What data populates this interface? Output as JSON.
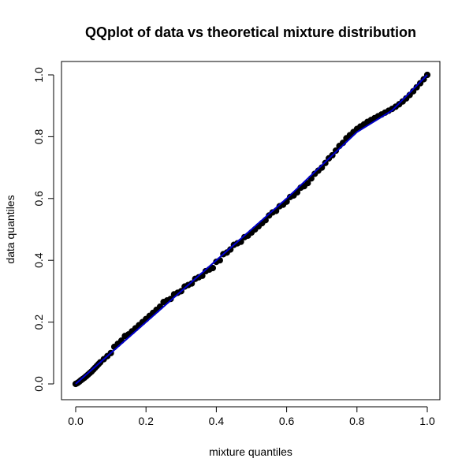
{
  "chart_data": {
    "type": "scatter",
    "title": "QQplot of data vs theoretical mixture distribution",
    "xlabel": "mixture quantiles",
    "ylabel": "data quantiles",
    "xlim": [
      0,
      1
    ],
    "ylim": [
      0,
      1
    ],
    "x_ticks": [
      "0.0",
      "0.2",
      "0.4",
      "0.6",
      "0.8",
      "1.0"
    ],
    "y_ticks": [
      "0.0",
      "0.2",
      "0.4",
      "0.6",
      "0.8",
      "1.0"
    ],
    "grid": false,
    "legend": "none",
    "point_color": "#000000",
    "line_color": "#0000cc",
    "reference_line": {
      "x": [
        0,
        0.6,
        0.8,
        0.9,
        1.0
      ],
      "y": [
        0,
        0.6,
        0.815,
        0.885,
        1.0
      ]
    },
    "series": [
      {
        "points": [
          [
            0.0,
            0.0
          ],
          [
            0.005,
            0.003
          ],
          [
            0.01,
            0.007
          ],
          [
            0.015,
            0.012
          ],
          [
            0.02,
            0.016
          ],
          [
            0.025,
            0.02
          ],
          [
            0.03,
            0.025
          ],
          [
            0.035,
            0.03
          ],
          [
            0.04,
            0.035
          ],
          [
            0.045,
            0.04
          ],
          [
            0.05,
            0.046
          ],
          [
            0.055,
            0.052
          ],
          [
            0.06,
            0.058
          ],
          [
            0.065,
            0.064
          ],
          [
            0.07,
            0.07
          ],
          [
            0.08,
            0.08
          ],
          [
            0.09,
            0.09
          ],
          [
            0.1,
            0.1
          ],
          [
            0.11,
            0.12
          ],
          [
            0.12,
            0.13
          ],
          [
            0.13,
            0.14
          ],
          [
            0.14,
            0.155
          ],
          [
            0.15,
            0.16
          ],
          [
            0.16,
            0.17
          ],
          [
            0.17,
            0.18
          ],
          [
            0.18,
            0.19
          ],
          [
            0.19,
            0.2
          ],
          [
            0.2,
            0.21
          ],
          [
            0.21,
            0.22
          ],
          [
            0.22,
            0.23
          ],
          [
            0.23,
            0.24
          ],
          [
            0.24,
            0.25
          ],
          [
            0.25,
            0.265
          ],
          [
            0.26,
            0.27
          ],
          [
            0.27,
            0.275
          ],
          [
            0.28,
            0.29
          ],
          [
            0.29,
            0.295
          ],
          [
            0.3,
            0.3
          ],
          [
            0.31,
            0.315
          ],
          [
            0.32,
            0.32
          ],
          [
            0.33,
            0.325
          ],
          [
            0.34,
            0.34
          ],
          [
            0.35,
            0.345
          ],
          [
            0.36,
            0.35
          ],
          [
            0.37,
            0.365
          ],
          [
            0.38,
            0.37
          ],
          [
            0.39,
            0.375
          ],
          [
            0.4,
            0.395
          ],
          [
            0.41,
            0.4
          ],
          [
            0.42,
            0.42
          ],
          [
            0.43,
            0.425
          ],
          [
            0.44,
            0.435
          ],
          [
            0.45,
            0.45
          ],
          [
            0.46,
            0.455
          ],
          [
            0.47,
            0.46
          ],
          [
            0.48,
            0.475
          ],
          [
            0.49,
            0.48
          ],
          [
            0.5,
            0.49
          ],
          [
            0.51,
            0.5
          ],
          [
            0.52,
            0.51
          ],
          [
            0.53,
            0.52
          ],
          [
            0.54,
            0.53
          ],
          [
            0.55,
            0.545
          ],
          [
            0.56,
            0.555
          ],
          [
            0.57,
            0.56
          ],
          [
            0.58,
            0.575
          ],
          [
            0.59,
            0.58
          ],
          [
            0.6,
            0.59
          ],
          [
            0.61,
            0.605
          ],
          [
            0.62,
            0.61
          ],
          [
            0.63,
            0.62
          ],
          [
            0.64,
            0.635
          ],
          [
            0.65,
            0.64
          ],
          [
            0.66,
            0.65
          ],
          [
            0.67,
            0.665
          ],
          [
            0.68,
            0.68
          ],
          [
            0.69,
            0.69
          ],
          [
            0.7,
            0.7
          ],
          [
            0.71,
            0.715
          ],
          [
            0.72,
            0.73
          ],
          [
            0.73,
            0.74
          ],
          [
            0.74,
            0.755
          ],
          [
            0.75,
            0.77
          ],
          [
            0.76,
            0.78
          ],
          [
            0.77,
            0.795
          ],
          [
            0.78,
            0.805
          ],
          [
            0.79,
            0.815
          ],
          [
            0.8,
            0.825
          ],
          [
            0.81,
            0.833
          ],
          [
            0.82,
            0.84
          ],
          [
            0.83,
            0.848
          ],
          [
            0.84,
            0.854
          ],
          [
            0.85,
            0.86
          ],
          [
            0.86,
            0.866
          ],
          [
            0.87,
            0.872
          ],
          [
            0.88,
            0.878
          ],
          [
            0.89,
            0.884
          ],
          [
            0.9,
            0.89
          ],
          [
            0.91,
            0.897
          ],
          [
            0.92,
            0.905
          ],
          [
            0.93,
            0.914
          ],
          [
            0.94,
            0.924
          ],
          [
            0.95,
            0.935
          ],
          [
            0.96,
            0.947
          ],
          [
            0.97,
            0.96
          ],
          [
            0.98,
            0.973
          ],
          [
            0.99,
            0.986
          ],
          [
            1.0,
            1.0
          ]
        ]
      }
    ]
  }
}
